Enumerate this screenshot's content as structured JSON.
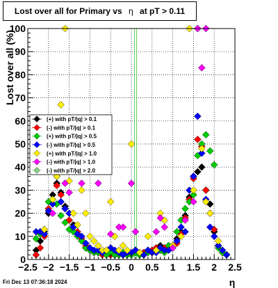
{
  "title": "Lost over all for Primary vs",
  "title_eta": "η",
  "title_cut": "at pT > 0.11",
  "timestamp": "Fri Dec 13 07:36:18 2024",
  "chart_data": {
    "type": "scatter",
    "xlabel": "η",
    "ylabel": "Lost over all (%)",
    "xlim": [
      -2.5,
      2.5
    ],
    "ylim": [
      0,
      100
    ],
    "xticks": [
      "−2.5",
      "−2",
      "−1.5",
      "−1",
      "−0.5",
      "0",
      "0.5",
      "1",
      "1.5",
      "2",
      "2.5"
    ],
    "yticks": [
      "0",
      "10",
      "20",
      "30",
      "40",
      "50",
      "60",
      "70",
      "80",
      "90",
      "100"
    ],
    "grid": true,
    "legend_position": "left-middle",
    "vertical_line_x": 0.1,
    "series": [
      {
        "name": "(+) with pT/|q| > 0.1",
        "color": "#000000",
        "x": [
          -2.3,
          -2.2,
          -2.1,
          -2.0,
          -1.9,
          -1.8,
          -1.7,
          -1.6,
          -1.5,
          -1.4,
          -1.3,
          -1.2,
          -1.1,
          -1.0,
          -0.9,
          -0.8,
          -0.7,
          -0.6,
          -0.5,
          -0.4,
          -0.3,
          -0.2,
          -0.1,
          0.0,
          0.1,
          0.2,
          0.3,
          0.4,
          0.5,
          0.6,
          0.7,
          0.8,
          0.9,
          1.0,
          1.1,
          1.2,
          1.3,
          1.4,
          1.5,
          1.6,
          1.7,
          1.8,
          1.9,
          2.0,
          2.1,
          2.2,
          2.3
        ],
        "y": [
          4,
          8,
          12,
          20,
          28,
          33,
          29,
          23,
          17,
          15,
          11,
          8,
          5,
          4,
          3,
          3,
          3,
          2,
          2,
          3,
          2,
          2,
          2,
          3,
          4,
          2,
          3,
          4,
          4,
          5,
          6,
          5,
          6,
          6,
          9,
          12,
          19,
          27,
          36,
          38,
          40,
          30,
          24,
          12,
          6,
          3,
          2
        ]
      },
      {
        "name": "(-) with pT/|q| > 0.1",
        "color": "#ff0000",
        "x": [
          -2.3,
          -2.2,
          -2.1,
          -2.0,
          -1.9,
          -1.8,
          -1.7,
          -1.6,
          -1.5,
          -1.4,
          -1.3,
          -1.2,
          -1.1,
          -1.0,
          -0.9,
          -0.8,
          -0.7,
          -0.6,
          -0.5,
          -0.4,
          -0.3,
          -0.2,
          -0.1,
          0.0,
          0.1,
          0.2,
          0.3,
          0.4,
          0.5,
          0.6,
          0.7,
          0.8,
          0.9,
          1.0,
          1.1,
          1.2,
          1.3,
          1.4,
          1.5,
          1.6,
          1.7,
          1.8,
          1.9,
          2.0,
          2.1,
          2.2,
          2.3
        ],
        "y": [
          2,
          5,
          10,
          22,
          26,
          32,
          28,
          22,
          17,
          14,
          12,
          9,
          6,
          4,
          3,
          3,
          2,
          3,
          2,
          2,
          3,
          2,
          2,
          3,
          3,
          2,
          3,
          3,
          4,
          5,
          4,
          5,
          5,
          6,
          7,
          11,
          18,
          26,
          35,
          52,
          49,
          30,
          20,
          13,
          6,
          3,
          2
        ]
      },
      {
        "name": "(+) with pT/|q| > 0.5",
        "color": "#00cc00",
        "x": [
          -2.3,
          -2.2,
          -2.1,
          -2.0,
          -1.9,
          -1.8,
          -1.7,
          -1.6,
          -1.5,
          -1.4,
          -1.3,
          -1.2,
          -1.1,
          -1.0,
          -0.9,
          -0.8,
          -0.7,
          -0.6,
          -0.5,
          -0.4,
          -0.3,
          -0.2,
          -0.1,
          0.0,
          0.1,
          0.2,
          0.3,
          0.4,
          0.5,
          0.6,
          0.7,
          0.8,
          0.9,
          1.0,
          1.1,
          1.2,
          1.3,
          1.4,
          1.5,
          1.6,
          1.7,
          1.8,
          1.9,
          2.0,
          2.1,
          2.2,
          2.3
        ],
        "y": [
          9,
          11,
          13,
          25,
          26,
          24,
          19,
          16,
          13,
          12,
          10,
          8,
          5,
          4,
          3,
          3,
          3,
          2,
          3,
          2,
          2,
          3,
          2,
          2,
          3,
          2,
          2,
          3,
          3,
          4,
          4,
          3,
          6,
          5,
          12,
          17,
          22,
          25,
          28,
          45,
          50,
          54,
          47,
          41,
          5,
          3,
          2
        ]
      },
      {
        "name": "(-) with pT/|q| > 0.5",
        "color": "#0000ff",
        "x": [
          -2.3,
          -2.2,
          -2.1,
          -2.0,
          -1.9,
          -1.8,
          -1.7,
          -1.6,
          -1.5,
          -1.4,
          -1.3,
          -1.2,
          -1.1,
          -1.0,
          -0.9,
          -0.8,
          -0.7,
          -0.6,
          -0.5,
          -0.4,
          -0.3,
          -0.2,
          -0.1,
          0.0,
          0.1,
          0.2,
          0.3,
          0.4,
          0.5,
          0.6,
          0.7,
          0.8,
          0.9,
          1.0,
          1.1,
          1.2,
          1.3,
          1.4,
          1.5,
          1.6,
          1.7,
          1.8,
          1.9,
          2.0,
          2.1,
          2.2,
          2.3
        ],
        "y": [
          12,
          12,
          11,
          21,
          24,
          36,
          25,
          22,
          20,
          14,
          11,
          10,
          7,
          5,
          4,
          4,
          3,
          4,
          5,
          4,
          3,
          2,
          3,
          3,
          4,
          3,
          2,
          4,
          3,
          3,
          5,
          4,
          4,
          5,
          8,
          14,
          12,
          30,
          36,
          62,
          46,
          26,
          14,
          10,
          6,
          4,
          2
        ]
      },
      {
        "name": "(+) with pT/|q| > 1.0",
        "color": "#ffee00",
        "x": [
          -2.1,
          -1.9,
          -1.8,
          -1.7,
          -1.6,
          -1.5,
          -1.4,
          -1.3,
          -1.2,
          -1.1,
          -1.0,
          -0.9,
          -0.8,
          -0.7,
          -0.6,
          -0.5,
          -0.4,
          -0.3,
          -0.2,
          -0.1,
          0.0,
          0.2,
          0.4,
          0.6,
          0.7,
          0.8,
          1.0,
          1.2,
          1.4,
          1.5,
          1.6,
          1.7,
          1.8,
          1.9,
          2.1
        ],
        "y": [
          13,
          26,
          36,
          67,
          100,
          34,
          20,
          15,
          30,
          20,
          10,
          8,
          6,
          4,
          4,
          25,
          10,
          4,
          6,
          4,
          50,
          3,
          10,
          4,
          20,
          17,
          6,
          10,
          100,
          30,
          100,
          48,
          25,
          20,
          8
        ]
      },
      {
        "name": "(-) with pT/|q| > 1.0",
        "color": "#ff00ff",
        "x": [
          -1.9,
          -1.6,
          -1.5,
          -1.2,
          -0.8,
          -0.5,
          -0.3,
          -0.2,
          0.0,
          0.1,
          0.6,
          0.7,
          0.8,
          1.0,
          1.3,
          1.5,
          1.6,
          1.7,
          1.8
        ],
        "y": [
          20,
          33,
          29,
          33,
          33,
          11,
          14,
          14,
          33,
          12,
          12,
          18,
          14,
          5,
          17,
          25,
          100,
          83,
          100
        ]
      },
      {
        "name": "(-) with pT/|q| > 2.0",
        "color": "#88cc88",
        "x": [],
        "y": []
      }
    ]
  }
}
